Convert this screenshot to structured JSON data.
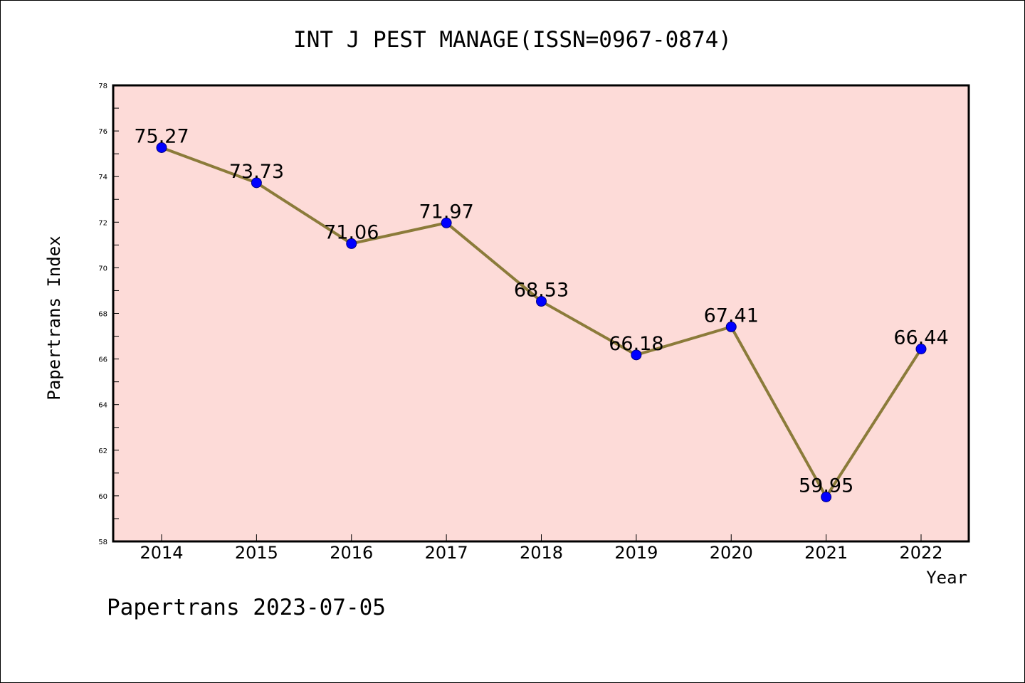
{
  "chart_data": {
    "type": "line",
    "title": "INT J PEST MANAGE(ISSN=0967-0874)",
    "xlabel": "Year",
    "ylabel": "Papertrans Index",
    "categories": [
      "2014",
      "2015",
      "2016",
      "2017",
      "2018",
      "2019",
      "2020",
      "2021",
      "2022"
    ],
    "series": [
      {
        "values": [
          75.27,
          73.73,
          71.06,
          71.97,
          68.53,
          66.18,
          67.41,
          59.95,
          66.44
        ]
      }
    ],
    "data_labels": [
      "75.27",
      "73.73",
      "71.06",
      "71.97",
      "68.53",
      "66.18",
      "67.41",
      "59.95",
      "66.44"
    ],
    "ylim": [
      58,
      78
    ],
    "yticks": [
      "58",
      "60",
      "62",
      "64",
      "66",
      "68",
      "70",
      "72",
      "74",
      "76",
      "78"
    ],
    "grid": false,
    "legend": "none"
  },
  "colors": {
    "plot_background": "#fddbd8",
    "line": "#8b7b3a",
    "marker": "#0000ff"
  },
  "footer": {
    "text": "Papertrans 2023-07-05"
  }
}
